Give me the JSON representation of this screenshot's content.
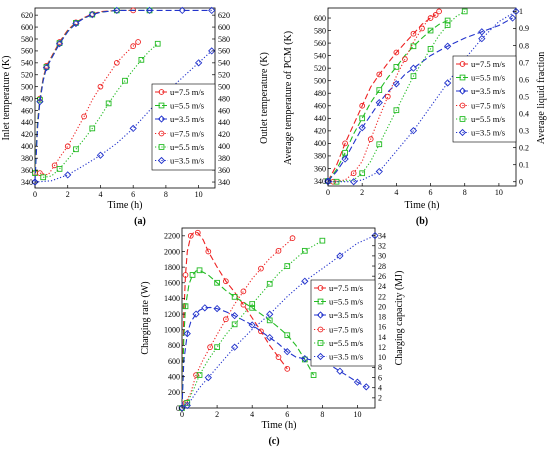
{
  "panels": [
    {
      "id": "a",
      "caption": "(a)",
      "xlabel": "Time (h)",
      "ylabel": "Inlet temperature (K)",
      "ylabel_right": "Outlet temperature (K)",
      "xlim": [
        0,
        11
      ],
      "xticks": [
        0,
        2,
        4,
        6,
        8,
        10
      ],
      "ylim": [
        330,
        632
      ],
      "yticks": [
        340,
        360,
        380,
        400,
        420,
        440,
        460,
        480,
        500,
        520,
        540,
        560,
        580,
        600,
        620
      ],
      "ylim_right": [
        330,
        632
      ],
      "yticks_right": [
        340,
        360,
        380,
        400,
        420,
        440,
        460,
        480,
        500,
        520,
        540,
        560,
        580,
        600,
        620
      ],
      "legend": [
        "u=7.5 m/s",
        "u=5.5 m/s",
        "u=3.5 m/s",
        "u=7.5 m/s",
        "u=5.5 m/s",
        "u=3.5 m/s"
      ],
      "series": [
        {
          "name": "u=7.5 m/s",
          "axis": "left",
          "color": "#ee2222",
          "style": "dashed",
          "marker": "circle",
          "x": [
            0,
            0.15,
            0.3,
            0.5,
            0.7,
            1,
            1.5,
            2,
            2.5,
            3,
            3.5,
            4,
            5,
            6
          ],
          "y": [
            355,
            440,
            480,
            515,
            535,
            550,
            575,
            595,
            608,
            616,
            622,
            626,
            628,
            628
          ]
        },
        {
          "name": "u=5.5 m/s",
          "axis": "left",
          "color": "#22bb22",
          "style": "dashed",
          "marker": "square",
          "x": [
            0,
            0.15,
            0.3,
            0.5,
            0.7,
            1,
            1.5,
            2,
            2.5,
            3,
            3.5,
            4,
            5,
            6,
            7
          ],
          "y": [
            355,
            438,
            478,
            512,
            533,
            548,
            573,
            593,
            607,
            615,
            621,
            625,
            628,
            628,
            628
          ]
        },
        {
          "name": "u=3.5 m/s",
          "axis": "left",
          "color": "#2233cc",
          "style": "dashed",
          "marker": "diamond",
          "x": [
            0,
            0.15,
            0.3,
            0.5,
            0.7,
            1,
            1.5,
            2,
            2.5,
            3,
            3.5,
            4,
            5,
            6,
            7,
            8,
            9,
            10,
            10.8
          ],
          "y": [
            340,
            430,
            475,
            510,
            532,
            547,
            572,
            592,
            606,
            615,
            621,
            625,
            628,
            628,
            628,
            628,
            628,
            628,
            628
          ]
        },
        {
          "name": "u=7.5 m/s",
          "axis": "right",
          "color": "#ee2222",
          "style": "dotted",
          "marker": "circle",
          "x": [
            0.3,
            0.8,
            1.2,
            1.6,
            2,
            2.5,
            3,
            3.5,
            4,
            4.5,
            5,
            5.5,
            6,
            6.3
          ],
          "y": [
            355,
            352,
            368,
            385,
            400,
            425,
            450,
            478,
            500,
            520,
            540,
            555,
            568,
            575
          ]
        },
        {
          "name": "u=5.5 m/s",
          "axis": "right",
          "color": "#22bb22",
          "style": "dotted",
          "marker": "square",
          "x": [
            0.5,
            1,
            1.5,
            2,
            2.5,
            3,
            3.5,
            4,
            4.5,
            5,
            5.5,
            6,
            6.5,
            7,
            7.5
          ],
          "y": [
            348,
            350,
            362,
            378,
            395,
            412,
            430,
            450,
            472,
            492,
            510,
            528,
            545,
            560,
            572
          ]
        },
        {
          "name": "u=3.5 m/s",
          "axis": "right",
          "color": "#2233cc",
          "style": "dotted",
          "marker": "diamond",
          "x": [
            0,
            1,
            2,
            3,
            4,
            5,
            6,
            7,
            8,
            9,
            10,
            10.8
          ],
          "y": [
            340,
            342,
            352,
            368,
            385,
            405,
            430,
            460,
            490,
            515,
            540,
            560
          ]
        }
      ]
    },
    {
      "id": "b",
      "caption": "(b)",
      "xlabel": "Time (h)",
      "ylabel": "Average temperature of PCM (K)",
      "ylabel_right": "Average liquid fraction",
      "xlim": [
        0,
        11
      ],
      "xticks": [
        0,
        2,
        4,
        6,
        8,
        10
      ],
      "ylim": [
        332,
        616
      ],
      "yticks": [
        340,
        360,
        380,
        400,
        420,
        440,
        460,
        480,
        500,
        520,
        540,
        560,
        580,
        600
      ],
      "ylim_right": [
        -0.025,
        1.02
      ],
      "yticks_right": [
        0,
        0.1,
        0.2,
        0.3,
        0.4,
        0.5,
        0.6,
        0.7,
        0.8,
        0.9,
        1
      ],
      "legend": [
        "u=7.5 m/s",
        "u=5.5 m/s",
        "u=3.5 m/s",
        "u=7.5 m/s",
        "u=5.5 m/s",
        "u=3.5 m/s"
      ],
      "series": [
        {
          "name": "u=7.5 m/s",
          "axis": "left",
          "color": "#ee2222",
          "style": "dashed",
          "marker": "circle",
          "x": [
            0,
            0.5,
            1,
            1.5,
            2,
            2.5,
            3,
            3.5,
            4,
            4.5,
            5,
            5.5,
            6,
            6.3
          ],
          "y": [
            340,
            365,
            400,
            430,
            460,
            490,
            510,
            528,
            545,
            560,
            575,
            590,
            600,
            605
          ]
        },
        {
          "name": "u=5.5 m/s",
          "axis": "left",
          "color": "#22bb22",
          "style": "dashed",
          "marker": "square",
          "x": [
            0,
            0.5,
            1,
            1.5,
            2,
            2.5,
            3,
            3.5,
            4,
            4.5,
            5,
            5.5,
            6,
            6.5,
            7
          ],
          "y": [
            340,
            358,
            385,
            415,
            440,
            465,
            485,
            505,
            522,
            540,
            555,
            568,
            580,
            590,
            596
          ]
        },
        {
          "name": "u=3.5 m/s",
          "axis": "left",
          "color": "#2233cc",
          "style": "dashed",
          "marker": "diamond",
          "x": [
            0,
            0.5,
            1,
            1.5,
            2,
            2.5,
            3,
            3.5,
            4,
            4.5,
            5,
            6,
            7,
            8,
            9,
            10,
            10.8
          ],
          "y": [
            340,
            355,
            375,
            400,
            425,
            445,
            465,
            482,
            495,
            510,
            520,
            540,
            555,
            568,
            578,
            588,
            600
          ]
        },
        {
          "name": "u=7.5 m/s",
          "axis": "right",
          "color": "#ee2222",
          "style": "dotted",
          "marker": "circle",
          "x": [
            0.3,
            1,
            1.5,
            2,
            2.5,
            3,
            3.5,
            4,
            4.5,
            5,
            5.5,
            6,
            6.5
          ],
          "y": [
            0,
            0.01,
            0.05,
            0.12,
            0.25,
            0.38,
            0.5,
            0.62,
            0.72,
            0.82,
            0.9,
            0.97,
            1.0
          ]
        },
        {
          "name": "u=5.5 m/s",
          "axis": "right",
          "color": "#22bb22",
          "style": "dotted",
          "marker": "square",
          "x": [
            0.5,
            1.5,
            2,
            2.5,
            3,
            3.5,
            4,
            4.5,
            5,
            5.5,
            6,
            6.5,
            7,
            7.5,
            8
          ],
          "y": [
            0,
            0.01,
            0.05,
            0.12,
            0.22,
            0.32,
            0.42,
            0.52,
            0.62,
            0.7,
            0.78,
            0.86,
            0.92,
            0.97,
            1.0
          ]
        },
        {
          "name": "u=3.5 m/s",
          "axis": "right",
          "color": "#2233cc",
          "style": "dotted",
          "marker": "diamond",
          "x": [
            0,
            1,
            1.5,
            2,
            3,
            4,
            5,
            6,
            7,
            8,
            9,
            10,
            11
          ],
          "y": [
            0,
            0,
            0,
            0.01,
            0.06,
            0.18,
            0.3,
            0.44,
            0.58,
            0.72,
            0.84,
            0.94,
            1.0
          ]
        }
      ]
    },
    {
      "id": "c",
      "caption": "(c)",
      "xlabel": "Time (h)",
      "ylabel": "Charging rate (W)",
      "ylabel_right": "Charging capacity (MJ)",
      "xlim": [
        0,
        11
      ],
      "xticks": [
        0,
        2,
        4,
        6,
        8,
        10
      ],
      "ylim": [
        0,
        2300
      ],
      "yticks": [
        0,
        200,
        400,
        600,
        800,
        1000,
        1200,
        1400,
        1600,
        1800,
        2000,
        2200
      ],
      "ylim_right": [
        0,
        35.5
      ],
      "yticks_right": [
        2,
        4,
        6,
        8,
        10,
        12,
        14,
        16,
        18,
        20,
        22,
        24,
        26,
        28,
        30,
        32,
        34
      ],
      "legend": [
        "u=7.5 m/s",
        "u=5.5 m/s",
        "u=3.5 m/s",
        "u=7.5 m/s",
        "u=5.5 m/s",
        "u=3.5 m/s"
      ],
      "series": [
        {
          "name": "u=7.5 m/s",
          "axis": "left",
          "color": "#ee2222",
          "style": "dashed",
          "marker": "circle",
          "x": [
            0,
            0.1,
            0.2,
            0.3,
            0.5,
            0.7,
            0.9,
            1.2,
            1.5,
            2,
            2.5,
            3,
            3.5,
            4,
            4.5,
            5,
            5.5,
            6
          ],
          "y": [
            0,
            1200,
            1700,
            2000,
            2200,
            2250,
            2240,
            2150,
            2000,
            1800,
            1620,
            1480,
            1320,
            1150,
            980,
            800,
            650,
            500
          ]
        },
        {
          "name": "u=5.5 m/s",
          "axis": "left",
          "color": "#22bb22",
          "style": "dashed",
          "marker": "square",
          "x": [
            0,
            0.1,
            0.2,
            0.4,
            0.6,
            0.8,
            1,
            1.5,
            2,
            2.5,
            3,
            3.5,
            4,
            4.5,
            5,
            5.5,
            6,
            6.5,
            7,
            7.5
          ],
          "y": [
            0,
            900,
            1300,
            1580,
            1700,
            1750,
            1760,
            1700,
            1600,
            1500,
            1420,
            1350,
            1280,
            1200,
            1120,
            1030,
            930,
            800,
            620,
            420
          ]
        },
        {
          "name": "u=3.5 m/s",
          "axis": "left",
          "color": "#2233cc",
          "style": "dashed",
          "marker": "diamond",
          "x": [
            0,
            0.1,
            0.3,
            0.5,
            0.8,
            1,
            1.3,
            1.6,
            2,
            2.5,
            3,
            3.5,
            4,
            4.5,
            5,
            5.5,
            6,
            6.5,
            7,
            7.5,
            8,
            8.5,
            9,
            9.5,
            10,
            10.5
          ],
          "y": [
            0,
            600,
            950,
            1100,
            1200,
            1250,
            1280,
            1285,
            1270,
            1230,
            1180,
            1120,
            1060,
            980,
            900,
            820,
            720,
            650,
            630,
            610,
            590,
            540,
            470,
            400,
            330,
            270
          ]
        },
        {
          "name": "u=7.5 m/s",
          "axis": "right",
          "color": "#ee2222",
          "style": "dotted",
          "marker": "circle",
          "x": [
            0.2,
            0.5,
            0.8,
            1.2,
            1.6,
            2,
            2.5,
            3,
            3.5,
            4,
            4.5,
            5,
            5.5,
            6,
            6.3
          ],
          "y": [
            1,
            3,
            6.5,
            9.5,
            12,
            14.5,
            17.5,
            20.5,
            23,
            25.5,
            27.5,
            29.5,
            31,
            32.5,
            33.5
          ]
        },
        {
          "name": "u=5.5 m/s",
          "axis": "right",
          "color": "#22bb22",
          "style": "dotted",
          "marker": "square",
          "x": [
            0.3,
            0.7,
            1,
            1.5,
            2,
            2.5,
            3,
            3.5,
            4,
            4.5,
            5,
            5.5,
            6,
            6.5,
            7,
            7.5,
            8
          ],
          "y": [
            1,
            4,
            6.5,
            9.5,
            12,
            14.5,
            16.5,
            18.5,
            20.5,
            22.5,
            24.5,
            26.5,
            28,
            29.5,
            31,
            32,
            33
          ]
        },
        {
          "name": "u=3.5 m/s",
          "axis": "right",
          "color": "#2233cc",
          "style": "dotted",
          "marker": "diamond",
          "x": [
            0.3,
            1,
            1.5,
            2,
            3,
            4,
            5,
            6,
            7,
            8,
            9,
            10,
            11
          ],
          "y": [
            0.5,
            4,
            6,
            8,
            12,
            15.5,
            18.5,
            22,
            25,
            27.5,
            30,
            32.5,
            34
          ]
        }
      ]
    }
  ]
}
